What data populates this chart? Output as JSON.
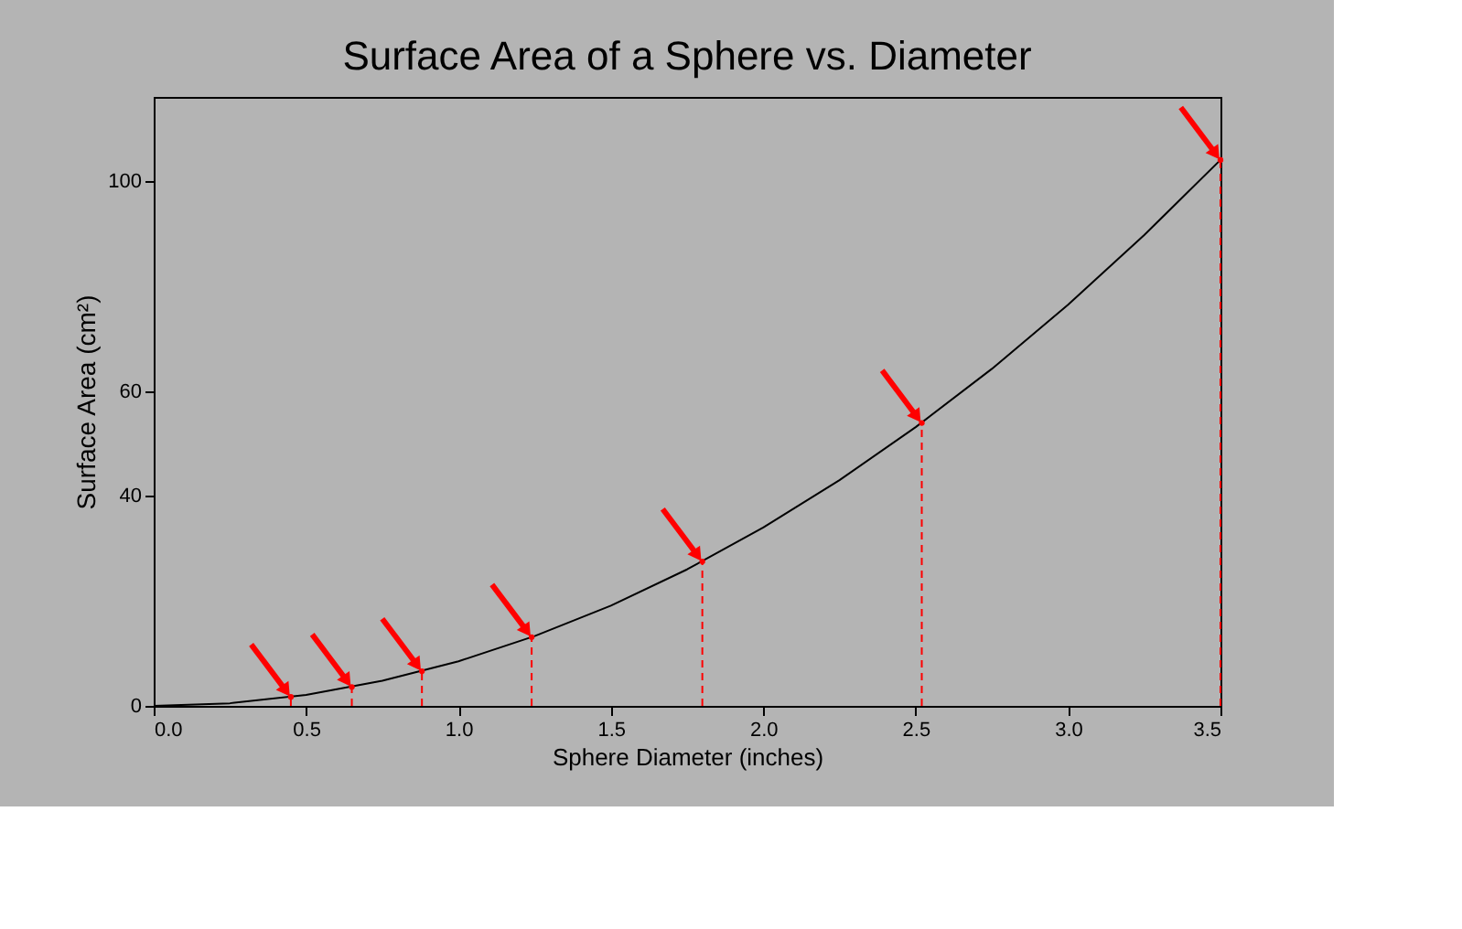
{
  "chart_data": {
    "type": "line",
    "title": "Surface Area of a Sphere vs. Diameter",
    "xlabel": "Sphere Diameter (inches)",
    "ylabel": "Surface Area (cm²)",
    "xlim": [
      0,
      3.5
    ],
    "xticks": [
      {
        "value": 0,
        "label": "0.0"
      },
      0.5,
      {
        "value": 1,
        "label": "1.0"
      },
      1.5,
      {
        "value": 2,
        "label": "2.0"
      },
      2.5,
      {
        "value": 3,
        "label": "3.0"
      },
      3.5
    ],
    "ylim": [
      0,
      116
    ],
    "yticks": [
      0,
      40,
      60,
      100
    ],
    "grid": false,
    "marker": "none",
    "series": [
      {
        "color": "#000000",
        "line_style": "solid",
        "x": [
          0,
          0.25,
          0.5,
          0.75,
          1.0,
          1.25,
          1.5,
          1.75,
          2.0,
          2.25,
          2.5,
          2.75,
          3.0,
          3.25,
          3.5
        ],
        "values": [
          0,
          0.5,
          2.1,
          4.8,
          8.5,
          13.3,
          19.1,
          26.0,
          34.0,
          43.0,
          53.1,
          64.2,
          76.4,
          89.7,
          104
        ]
      },
      {
        "type": "lollipop",
        "color": "#ff0000",
        "line_style": "dashed",
        "x": [
          0.45,
          0.65,
          0.88,
          1.24,
          1.8,
          2.52,
          3.5
        ],
        "values": [
          1.7,
          3.6,
          6.6,
          13.1,
          27.5,
          53.9,
          104
        ]
      }
    ]
  }
}
